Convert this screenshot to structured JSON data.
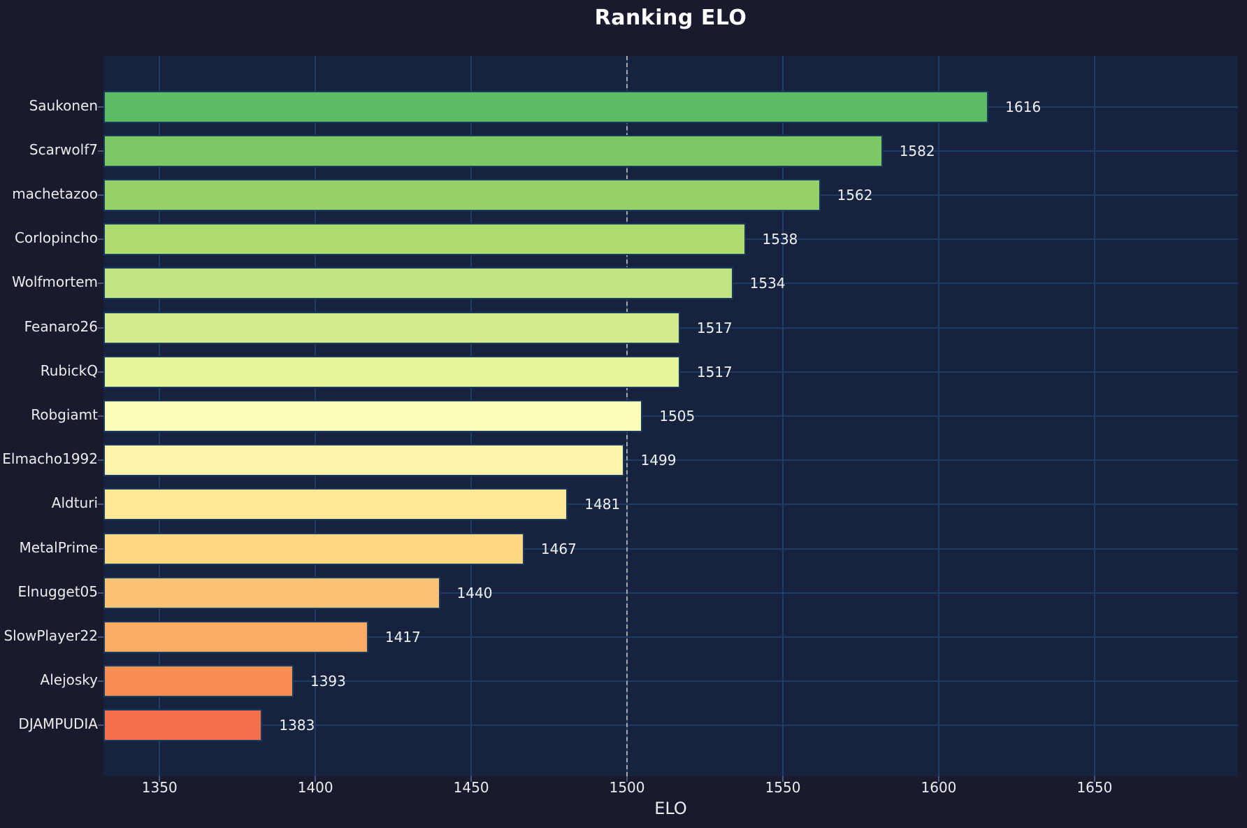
{
  "chart_data": {
    "type": "bar",
    "orientation": "horizontal",
    "title": "Ranking ELO",
    "xlabel": "ELO",
    "ylabel": "",
    "categories": [
      "Saukonen",
      "Scarwolf7",
      "machetazoo",
      "Corlopincho",
      "Wolfmortem",
      "Feanaro26",
      "RubickQ",
      "Robgiamt",
      "Elmacho1992",
      "Aldturi",
      "MetalPrime",
      "Elnugget05",
      "SlowPlayer22",
      "Alejosky",
      "DJAMPUDIA"
    ],
    "values": [
      1616,
      1582,
      1562,
      1538,
      1534,
      1517,
      1517,
      1505,
      1499,
      1481,
      1467,
      1440,
      1417,
      1393,
      1383
    ],
    "value_labels": [
      "1616",
      "1582",
      "1562",
      "1538",
      "1534",
      "1517",
      "1517",
      "1505",
      "1499",
      "1481",
      "1467",
      "1440",
      "1417",
      "1393",
      "1383"
    ],
    "bar_colors": [
      "#5cbb63",
      "#7cc865",
      "#95d168",
      "#addb6d",
      "#c2e483",
      "#d5ec8e",
      "#e6f59b",
      "#fdfdba",
      "#fef3ab",
      "#fee795",
      "#fdd782",
      "#fdc374",
      "#fbac63",
      "#f98e52",
      "#f5714b"
    ],
    "xlim": [
      1332,
      1696
    ],
    "xticks": [
      1350,
      1400,
      1450,
      1500,
      1550,
      1600,
      1650
    ],
    "xtick_labels": [
      "1350",
      "1400",
      "1450",
      "1500",
      "1550",
      "1600",
      "1650"
    ],
    "grid": true,
    "legend": "none",
    "reference_line": {
      "x": 1500,
      "style": "dashed",
      "color": "#aaaaaa"
    },
    "colors": {
      "outer_background": "#1a1a2e",
      "plot_background": "#16223e",
      "gridline": "#1f3c64",
      "bar_edge": "#173a5e",
      "text": "#ededed",
      "title_text": "#ffffff"
    }
  }
}
